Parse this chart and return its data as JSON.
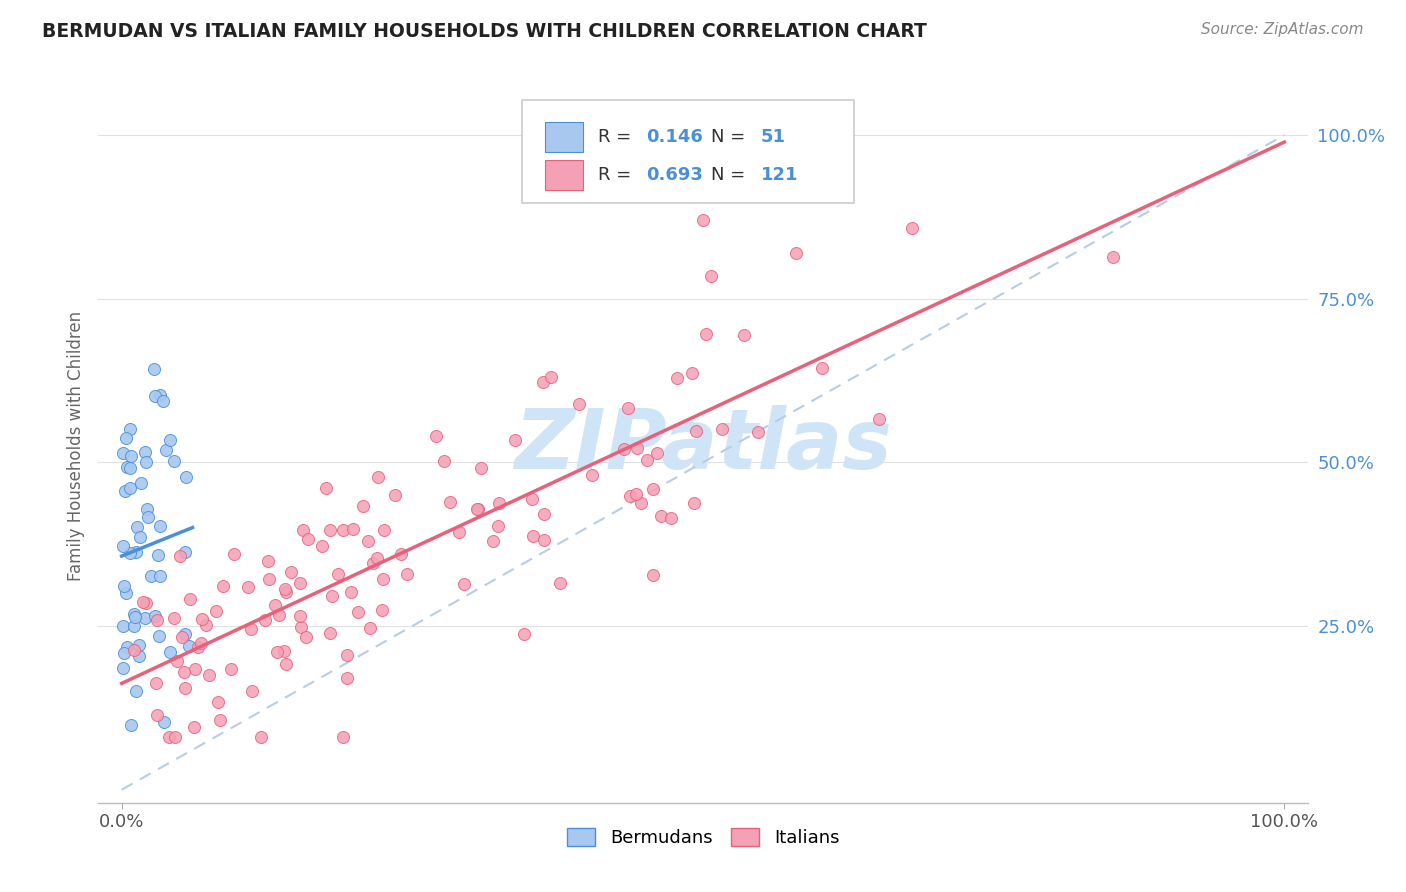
{
  "title": "BERMUDAN VS ITALIAN FAMILY HOUSEHOLDS WITH CHILDREN CORRELATION CHART",
  "source": "Source: ZipAtlas.com",
  "ylabel": "Family Households with Children",
  "legend_label1": "Bermudans",
  "legend_label2": "Italians",
  "R1": "0.146",
  "N1": "51",
  "R2": "0.693",
  "N2": "121",
  "color_bermudan": "#a8c8f0",
  "color_italian": "#f4a0b5",
  "line_color_bermudan": "#4a90d9",
  "line_color_italian": "#e8607a",
  "watermark_color": "#d0e4f7",
  "background_color": "#ffffff",
  "xlim": [
    0.0,
    1.0
  ],
  "ylim": [
    0.0,
    1.05
  ],
  "yticks": [
    0.25,
    0.5,
    0.75,
    1.0
  ],
  "ytick_labels": [
    "25.0%",
    "50.0%",
    "75.0%",
    "100.0%"
  ]
}
